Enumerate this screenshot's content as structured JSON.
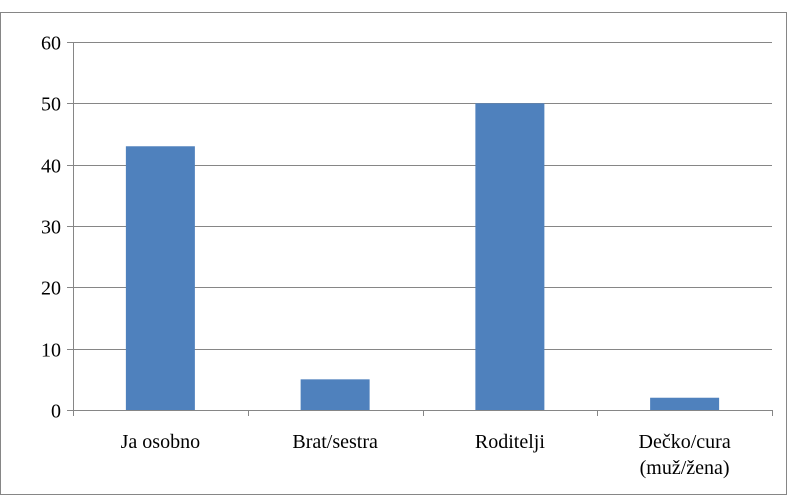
{
  "chart_data": {
    "type": "bar",
    "title": "",
    "xlabel": "",
    "ylabel": "",
    "categories": [
      "Ja osobno",
      "Brat/sestra",
      "Roditelji",
      "Dečko/cura\n(muž/žena)"
    ],
    "values": [
      43,
      5,
      50,
      2
    ],
    "ylim": [
      0,
      60
    ],
    "yticks": [
      0,
      10,
      20,
      30,
      40,
      50,
      60
    ],
    "grid": true,
    "legend": "none",
    "colors": {
      "bar": "#4F81BD",
      "grid": "#868686",
      "axis": "#868686",
      "frame": "#868686"
    }
  }
}
